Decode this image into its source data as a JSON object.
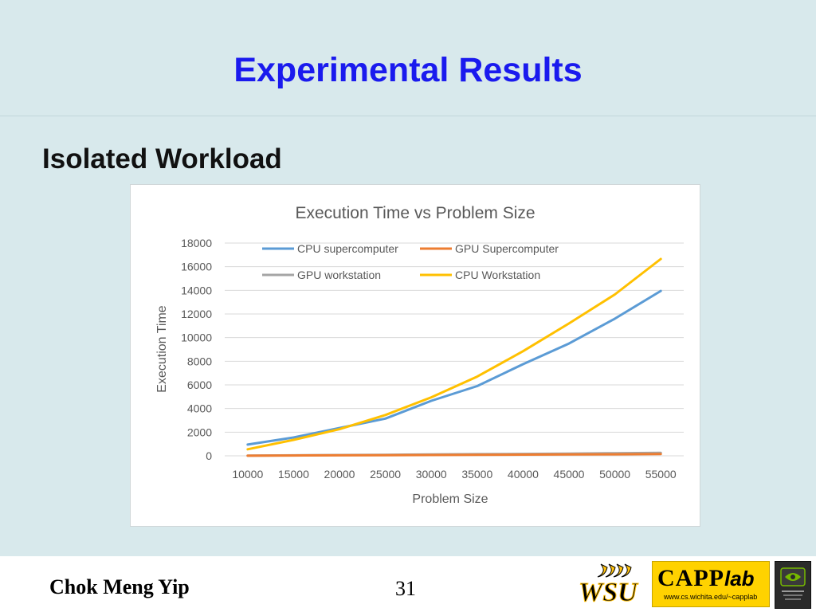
{
  "slide": {
    "title": "Experimental Results",
    "subtitle": "Isolated Workload"
  },
  "footer": {
    "author": "Chok Meng Yip",
    "page_number": "31",
    "logos": {
      "wsu": "WSU",
      "capp_main": "CAPP",
      "capp_lab": "lab",
      "capp_url": "www.cs.wichita.edu/~capplab",
      "nvidia": "nvidia-logo-icon"
    }
  },
  "colors": {
    "background": "#d8e9ec",
    "title": "#1a1aee",
    "capp_yellow": "#ffd200",
    "wsu_yellow": "#ffc20e"
  },
  "chart_data": {
    "type": "line",
    "title": "Execution Time vs Problem Size",
    "xlabel": "Problem Size",
    "ylabel": "Execution Time",
    "x": [
      10000,
      15000,
      20000,
      25000,
      30000,
      35000,
      40000,
      45000,
      50000,
      55000
    ],
    "ylim": [
      0,
      18000
    ],
    "yticks": [
      0,
      2000,
      4000,
      6000,
      8000,
      10000,
      12000,
      14000,
      16000,
      18000
    ],
    "grid": true,
    "legend_position": "top",
    "series": [
      {
        "name": "CPU supercomputer",
        "color": "#5b9bd5",
        "values": [
          950,
          1550,
          2350,
          3150,
          4650,
          5900,
          7750,
          9500,
          11600,
          13950
        ]
      },
      {
        "name": "GPU Supercomputer",
        "color": "#ed7d31",
        "values": [
          10,
          25,
          40,
          55,
          70,
          85,
          100,
          115,
          130,
          145
        ]
      },
      {
        "name": "GPU workstation",
        "color": "#a5a5a5",
        "values": [
          20,
          40,
          65,
          90,
          115,
          140,
          165,
          190,
          220,
          250
        ]
      },
      {
        "name": "CPU Workstation",
        "color": "#ffc000",
        "values": [
          550,
          1350,
          2250,
          3450,
          4950,
          6700,
          8850,
          11200,
          13650,
          16650
        ]
      }
    ]
  }
}
